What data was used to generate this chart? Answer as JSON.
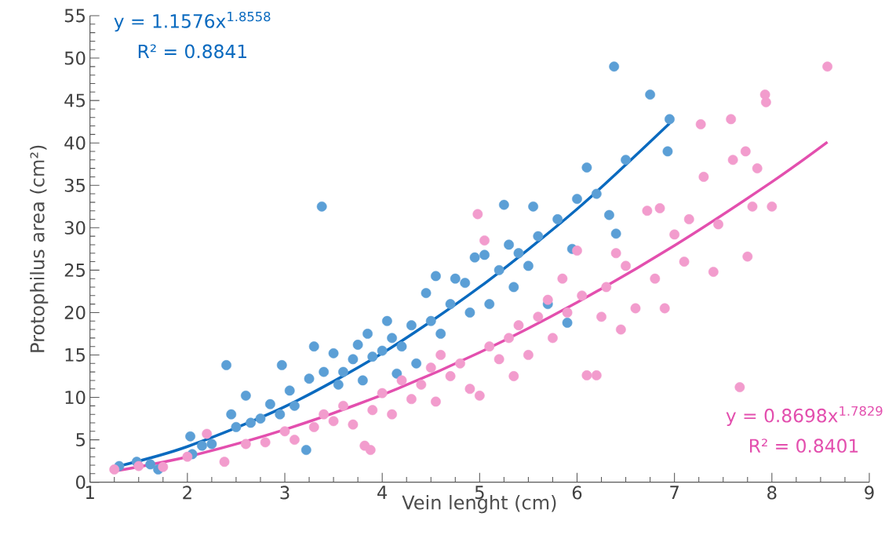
{
  "chart_data": {
    "type": "scatter",
    "xlabel": "Vein lenght (cm)",
    "ylabel": "Protophilus area (cm²)",
    "xlim": [
      1,
      9
    ],
    "xticks": [
      1,
      2,
      3,
      4,
      5,
      6,
      7,
      8,
      9
    ],
    "ylim": [
      0,
      55
    ],
    "yticks": [
      0,
      5,
      10,
      15,
      20,
      25,
      30,
      35,
      40,
      45,
      50,
      55
    ],
    "grid": false,
    "marker": "circle",
    "annotations": [
      "y = 1.1576x$^{1.8558}$",
      "R² = 0.8841",
      "y = 0.8698x$^{1.7829}$",
      "R² = 0.8401"
    ],
    "series": [
      {
        "color": "#5b9fd6",
        "x": [
          1.3,
          1.48,
          1.62,
          1.7,
          2.03,
          2.05,
          2.15,
          2.25,
          2.4,
          2.45,
          2.5,
          2.6,
          2.65,
          2.75,
          2.85,
          2.95,
          2.97,
          3.05,
          3.1,
          3.22,
          3.25,
          3.3,
          3.38,
          3.4,
          3.5,
          3.55,
          3.6,
          3.7,
          3.75,
          3.8,
          3.85,
          3.9,
          4.0,
          4.05,
          4.1,
          4.15,
          4.2,
          4.3,
          4.35,
          4.45,
          4.5,
          4.55,
          4.6,
          4.7,
          4.75,
          4.85,
          4.9,
          4.95,
          5.05,
          5.1,
          5.2,
          5.25,
          5.3,
          5.35,
          5.4,
          5.5,
          5.55,
          5.6,
          5.7,
          5.8,
          5.9,
          5.95,
          6.0,
          6.1,
          6.2,
          6.33,
          6.38,
          6.4,
          6.5,
          6.75,
          6.93,
          6.95
        ],
        "values": [
          1.9,
          2.4,
          2.1,
          1.5,
          5.4,
          3.3,
          4.3,
          4.5,
          13.8,
          8.0,
          6.5,
          10.2,
          7.0,
          7.5,
          9.2,
          8.0,
          13.8,
          10.8,
          9.0,
          3.8,
          12.2,
          16.0,
          32.5,
          13.0,
          15.2,
          11.5,
          13.0,
          14.5,
          16.2,
          12.0,
          17.5,
          14.8,
          15.5,
          19.0,
          17.0,
          12.8,
          16.0,
          18.5,
          14.0,
          22.3,
          19.0,
          24.3,
          17.5,
          21.0,
          24.0,
          23.5,
          20.0,
          26.5,
          26.8,
          21.0,
          25.0,
          32.7,
          28.0,
          23.0,
          27.0,
          25.5,
          32.5,
          29.0,
          21.0,
          31.0,
          18.8,
          27.5,
          33.4,
          37.1,
          34.0,
          31.5,
          49.0,
          29.3,
          38.0,
          45.7,
          39.0,
          42.8
        ]
      },
      {
        "type": "line",
        "marker": "none",
        "color": "#0a6abf",
        "x": [
          1.3,
          2,
          3,
          4,
          5,
          6,
          6.95
        ],
        "values": [
          1.9,
          4.2,
          8.9,
          15.2,
          23,
          32.2,
          42.3
        ]
      },
      {
        "color": "#f29ccd",
        "x": [
          1.25,
          1.5,
          1.75,
          2.0,
          2.2,
          2.38,
          2.6,
          2.8,
          3.0,
          3.1,
          3.3,
          3.4,
          3.5,
          3.6,
          3.7,
          3.82,
          3.88,
          3.9,
          4.0,
          4.1,
          4.2,
          4.3,
          4.4,
          4.5,
          4.55,
          4.6,
          4.7,
          4.8,
          4.9,
          4.98,
          5.0,
          5.05,
          5.1,
          5.2,
          5.3,
          5.35,
          5.4,
          5.5,
          5.6,
          5.7,
          5.75,
          5.85,
          5.9,
          6.0,
          6.05,
          6.1,
          6.2,
          6.25,
          6.3,
          6.4,
          6.45,
          6.5,
          6.6,
          6.72,
          6.8,
          6.85,
          6.9,
          7.0,
          7.1,
          7.15,
          7.27,
          7.3,
          7.4,
          7.45,
          7.58,
          7.6,
          7.67,
          7.73,
          7.75,
          7.8,
          7.85,
          7.93,
          7.94,
          8.0,
          8.57
        ],
        "values": [
          1.5,
          1.9,
          1.8,
          3.0,
          5.7,
          2.4,
          4.5,
          4.7,
          6.0,
          5.0,
          6.5,
          8.0,
          7.2,
          9.0,
          6.8,
          4.3,
          3.8,
          8.5,
          10.5,
          8.0,
          12.0,
          9.8,
          11.5,
          13.5,
          9.5,
          15.0,
          12.5,
          14.0,
          11.0,
          31.6,
          10.2,
          28.5,
          16.0,
          14.5,
          17.0,
          12.5,
          18.5,
          15.0,
          19.5,
          21.5,
          17.0,
          24.0,
          20.0,
          27.3,
          22.0,
          12.6,
          12.6,
          19.5,
          23.0,
          27.0,
          18.0,
          25.5,
          20.5,
          32.0,
          24.0,
          32.3,
          20.5,
          29.2,
          26.0,
          31.0,
          42.2,
          36.0,
          24.8,
          30.4,
          42.8,
          38.0,
          11.2,
          39.0,
          26.6,
          32.5,
          37.0,
          45.7,
          44.8,
          32.5,
          49.0
        ]
      },
      {
        "type": "line",
        "marker": "none",
        "color": "#e34fae",
        "x": [
          1.25,
          2,
          3,
          4,
          5,
          6,
          7,
          8,
          8.57
        ],
        "values": [
          1.3,
          3,
          6.2,
          10.3,
          15.3,
          21.2,
          27.9,
          35.4,
          40.1
        ]
      }
    ]
  }
}
